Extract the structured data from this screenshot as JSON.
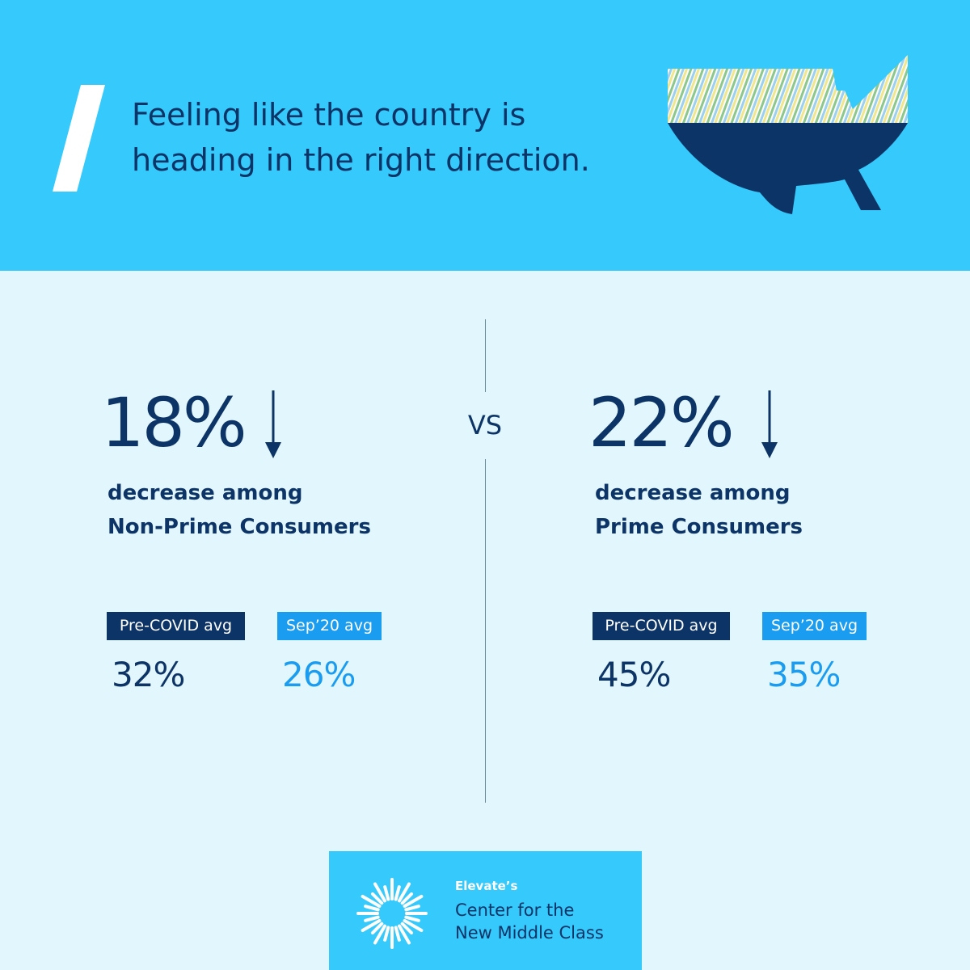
{
  "header": {
    "title_lines": [
      "Feeling like the country is",
      "heading in the right direction."
    ]
  },
  "left": {
    "headline": "18%",
    "caption_lines": [
      "decrease among",
      "Non-Prime Consumers"
    ],
    "badges": [
      {
        "label": "Pre-COVID avg",
        "value": "32%"
      },
      {
        "label": "Sep’20 avg",
        "value": "26%"
      }
    ]
  },
  "divider": {
    "label": "VS"
  },
  "right": {
    "headline": "22%",
    "caption_lines": [
      "decrease among",
      "Prime Consumers"
    ],
    "badges": [
      {
        "label": "Pre-COVID avg",
        "value": "45%"
      },
      {
        "label": "Sep’20 avg",
        "value": "35%"
      }
    ]
  },
  "footer": {
    "brand": "Elevate’s",
    "name_lines": [
      "Center for the",
      "New Middle Class"
    ]
  }
}
